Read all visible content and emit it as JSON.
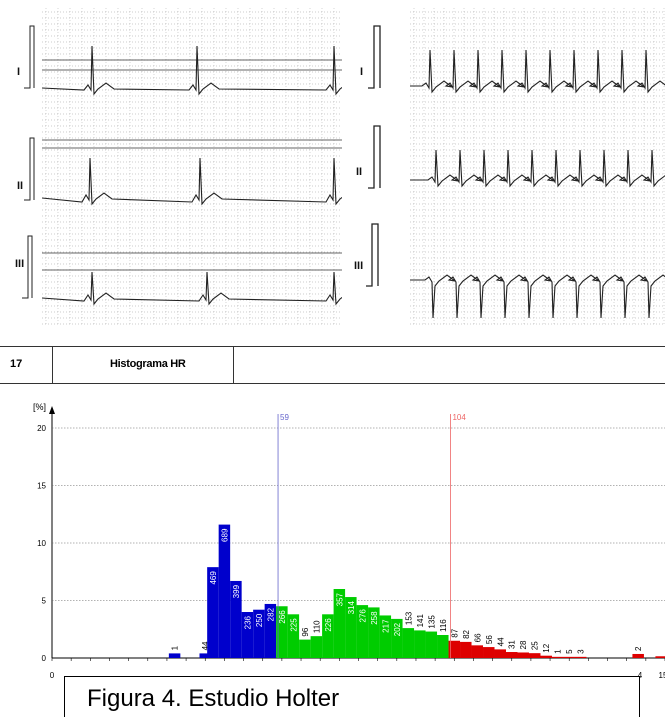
{
  "ecg": {
    "left_leads": [
      "I",
      "II",
      "III"
    ],
    "right_leads": [
      "I",
      "II",
      "III"
    ]
  },
  "header": {
    "number": "17",
    "title": "Histograma HR"
  },
  "caption": "Figura 4. Estudio Holter",
  "colors": {
    "blue": "#0000cc",
    "green": "#00cc00",
    "red": "#dd0000",
    "low_line": "#6666cc",
    "high_line": "#ee6666"
  },
  "chart_data": {
    "type": "bar",
    "ylabel": "[%]",
    "ylim": [
      0,
      20
    ],
    "yticks": [
      "0",
      "5",
      "10",
      "15",
      "20"
    ],
    "xlim": [
      0,
      160
    ],
    "xtick_labels": [
      "0",
      "4",
      "15"
    ],
    "markers": [
      {
        "value": "59",
        "x": 59,
        "color": "#6666cc"
      },
      {
        "value": "104",
        "x": 104,
        "color": "#ee6666"
      }
    ],
    "bars": [
      {
        "x": 32,
        "v": 0.4,
        "label": "1",
        "c": "blue"
      },
      {
        "x": 40,
        "v": 0.4,
        "label": "44",
        "c": "blue"
      },
      {
        "x": 42,
        "v": 7.9,
        "label": "469",
        "c": "blue"
      },
      {
        "x": 45,
        "v": 11.6,
        "label": "689",
        "c": "blue"
      },
      {
        "x": 48,
        "v": 6.7,
        "label": "399",
        "c": "blue"
      },
      {
        "x": 51,
        "v": 4.0,
        "label": "236",
        "c": "blue"
      },
      {
        "x": 54,
        "v": 4.2,
        "label": "250",
        "c": "blue"
      },
      {
        "x": 57,
        "v": 4.7,
        "label": "282",
        "c": "blue"
      },
      {
        "x": 60,
        "v": 4.5,
        "label": "266",
        "c": "green"
      },
      {
        "x": 63,
        "v": 3.8,
        "label": "225",
        "c": "green"
      },
      {
        "x": 66,
        "v": 1.6,
        "label": "96",
        "c": "green"
      },
      {
        "x": 69,
        "v": 1.9,
        "label": "110",
        "c": "green"
      },
      {
        "x": 72,
        "v": 3.8,
        "label": "226",
        "c": "green"
      },
      {
        "x": 75,
        "v": 6.0,
        "label": "357",
        "c": "green"
      },
      {
        "x": 78,
        "v": 5.3,
        "label": "314",
        "c": "green"
      },
      {
        "x": 81,
        "v": 4.6,
        "label": "276",
        "c": "green"
      },
      {
        "x": 84,
        "v": 4.4,
        "label": "258",
        "c": "green"
      },
      {
        "x": 87,
        "v": 3.7,
        "label": "217",
        "c": "green"
      },
      {
        "x": 90,
        "v": 3.4,
        "label": "202",
        "c": "green"
      },
      {
        "x": 93,
        "v": 2.6,
        "label": "153",
        "c": "green"
      },
      {
        "x": 96,
        "v": 2.4,
        "label": "141",
        "c": "green"
      },
      {
        "x": 99,
        "v": 2.3,
        "label": "135",
        "c": "green"
      },
      {
        "x": 102,
        "v": 2.0,
        "label": "116",
        "c": "green"
      },
      {
        "x": 105,
        "v": 1.5,
        "label": "87",
        "c": "red"
      },
      {
        "x": 108,
        "v": 1.4,
        "label": "82",
        "c": "red"
      },
      {
        "x": 111,
        "v": 1.1,
        "label": "66",
        "c": "red"
      },
      {
        "x": 114,
        "v": 0.95,
        "label": "56",
        "c": "red"
      },
      {
        "x": 117,
        "v": 0.75,
        "label": "44",
        "c": "red"
      },
      {
        "x": 120,
        "v": 0.52,
        "label": "31",
        "c": "red"
      },
      {
        "x": 123,
        "v": 0.48,
        "label": "28",
        "c": "red"
      },
      {
        "x": 126,
        "v": 0.42,
        "label": "25",
        "c": "red"
      },
      {
        "x": 129,
        "v": 0.2,
        "label": "12",
        "c": "red"
      },
      {
        "x": 132,
        "v": 0.1,
        "label": "1",
        "c": "red"
      },
      {
        "x": 135,
        "v": 0.1,
        "label": "5",
        "c": "red"
      },
      {
        "x": 138,
        "v": 0.1,
        "label": "3",
        "c": "red"
      },
      {
        "x": 153,
        "v": 0.35,
        "label": "2",
        "c": "red"
      },
      {
        "x": 159,
        "v": 0.15,
        "label": "",
        "c": "red"
      }
    ]
  }
}
